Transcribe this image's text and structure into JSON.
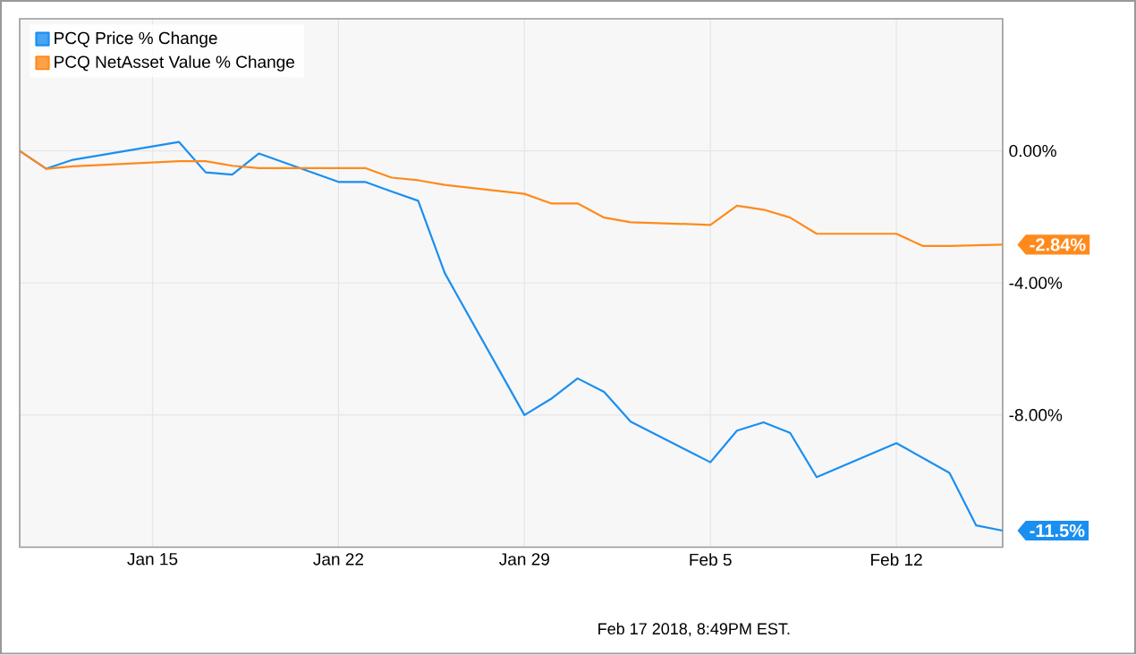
{
  "chart_data": {
    "type": "line",
    "x": [
      "2018-01-10",
      "2018-01-11",
      "2018-01-12",
      "2018-01-16",
      "2018-01-17",
      "2018-01-18",
      "2018-01-19",
      "2018-01-22",
      "2018-01-23",
      "2018-01-24",
      "2018-01-25",
      "2018-01-26",
      "2018-01-29",
      "2018-01-30",
      "2018-01-31",
      "2018-02-01",
      "2018-02-02",
      "2018-02-05",
      "2018-02-06",
      "2018-02-07",
      "2018-02-08",
      "2018-02-09",
      "2018-02-12",
      "2018-02-13",
      "2018-02-14",
      "2018-02-15",
      "2018-02-16"
    ],
    "series": [
      {
        "name": "PCQ Price % Change",
        "color": "#1a8ff0",
        "values": [
          0,
          -0.54,
          -0.27,
          0.27,
          -0.65,
          -0.72,
          -0.08,
          -0.94,
          -0.94,
          -1.23,
          -1.51,
          -3.7,
          -8.0,
          -7.51,
          -6.89,
          -7.3,
          -8.2,
          -9.43,
          -8.47,
          -8.22,
          -8.54,
          -9.88,
          -8.85,
          -9.3,
          -9.75,
          -11.34,
          -11.5
        ]
      },
      {
        "name": "PCQ NetAsset Value % Change",
        "color": "#ff8a1c",
        "values": [
          0,
          -0.54,
          -0.47,
          -0.31,
          -0.31,
          -0.45,
          -0.52,
          -0.52,
          -0.52,
          -0.81,
          -0.89,
          -1.03,
          -1.3,
          -1.59,
          -1.59,
          -2.02,
          -2.16,
          -2.24,
          -1.66,
          -1.78,
          -2.02,
          -2.51,
          -2.51,
          -2.88,
          -2.88,
          -2.86,
          -2.84
        ]
      }
    ],
    "xlim": [
      "2018-01-10",
      "2018-02-16"
    ],
    "xticks": [
      {
        "value": "2018-01-15",
        "label": "Jan 15"
      },
      {
        "value": "2018-01-22",
        "label": "Jan 22"
      },
      {
        "value": "2018-01-29",
        "label": "Jan 29"
      },
      {
        "value": "2018-02-05",
        "label": "Feb 5"
      },
      {
        "value": "2018-02-12",
        "label": "Feb 12"
      }
    ],
    "ylim": [
      -12,
      4
    ],
    "yticks": [
      {
        "value": 0,
        "label": "0.00%"
      },
      {
        "value": -4,
        "label": "-4.00%"
      },
      {
        "value": -8,
        "label": "-8.00%"
      }
    ],
    "grid": true,
    "legend": "top left",
    "marker": "none",
    "line_style": "solid",
    "annotations": [
      {
        "text": "-11.5%",
        "x": "2018-02-16",
        "y": -11.5
      },
      {
        "text": "-2.84%",
        "x": "2018-02-16",
        "y": -2.84
      },
      "Feb 17 2018, 8:49PM EST."
    ]
  }
}
